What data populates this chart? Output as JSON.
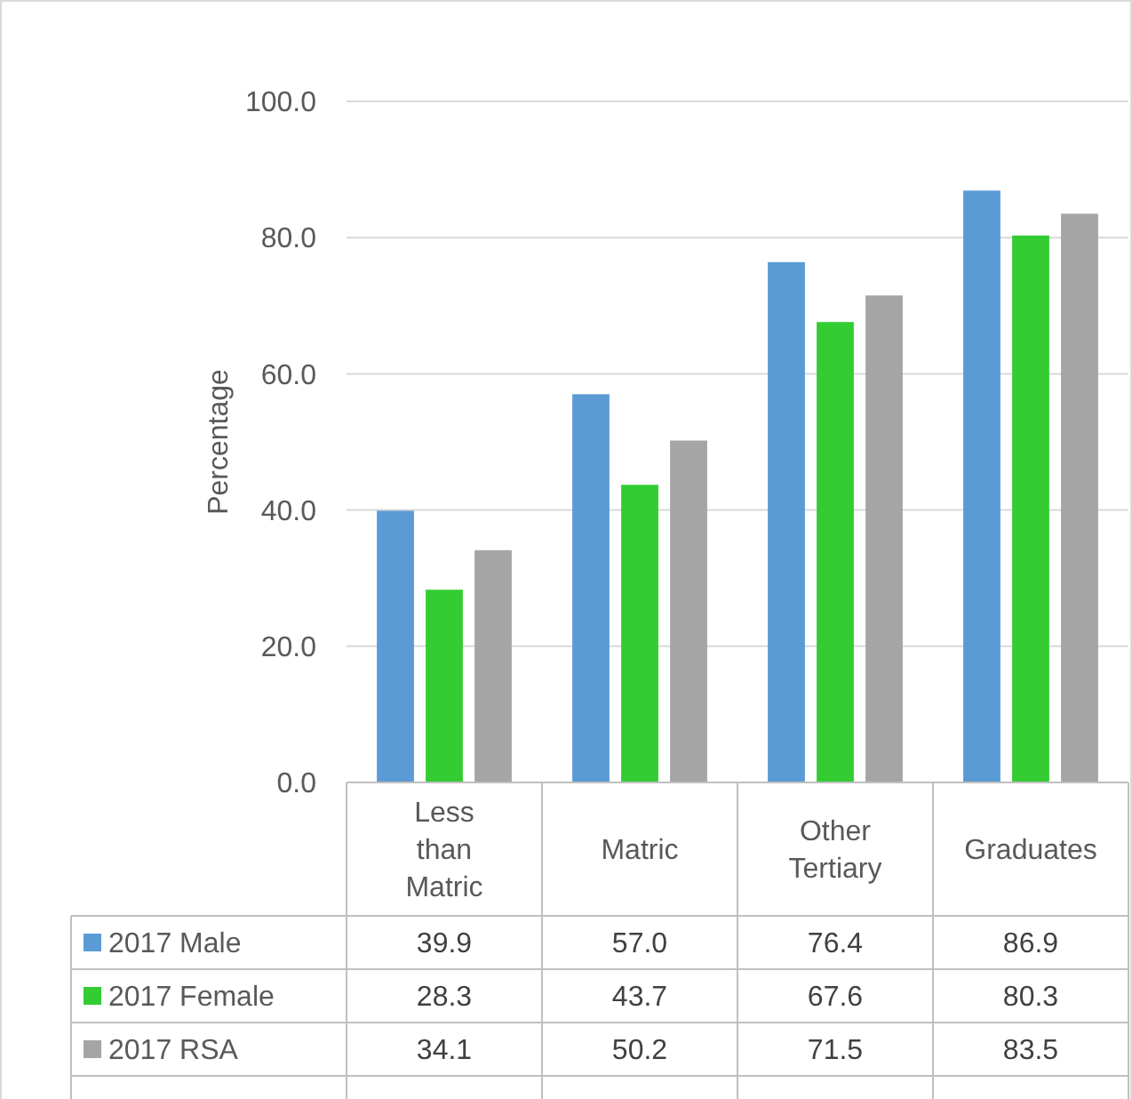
{
  "chart_data": {
    "type": "bar",
    "ylabel": "Percentage",
    "categories": [
      "Less than Matric",
      "Matric",
      "Other Tertiary",
      "Graduates"
    ],
    "series": [
      {
        "name": "2017 Male",
        "color": "#5b9bd5",
        "values": [
          39.9,
          57.0,
          76.4,
          86.9
        ],
        "value_labels": [
          "39.9",
          "57.0",
          "76.4",
          "86.9"
        ]
      },
      {
        "name": "2017 Female",
        "color": "#33cc33",
        "values": [
          28.3,
          43.7,
          67.6,
          80.3
        ],
        "value_labels": [
          "28.3",
          "43.7",
          "67.6",
          "80.3"
        ]
      },
      {
        "name": "2017 RSA",
        "color": "#a5a5a5",
        "values": [
          34.1,
          50.2,
          71.5,
          83.5
        ],
        "value_labels": [
          "34.1",
          "50.2",
          "71.5",
          "83.5"
        ]
      }
    ],
    "ylim": [
      0,
      100
    ],
    "yticks": [
      {
        "value": 0,
        "label": "0.0"
      },
      {
        "value": 20,
        "label": "20.0"
      },
      {
        "value": 40,
        "label": "40.0"
      },
      {
        "value": 60,
        "label": "60.0"
      },
      {
        "value": 80,
        "label": "80.0"
      },
      {
        "value": 100,
        "label": "100.0"
      }
    ],
    "grid": "y",
    "legend": "bottom"
  }
}
